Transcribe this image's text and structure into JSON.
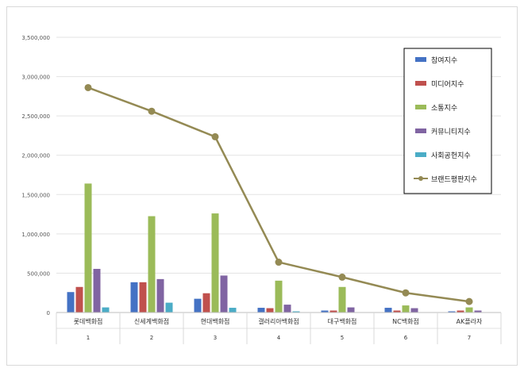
{
  "chart_data": {
    "type": "bar",
    "title": "",
    "xlabel": "",
    "ylabel": "",
    "ylim": [
      0,
      3500000
    ],
    "yticks": [
      "0",
      "500,000",
      "1,000,000",
      "1,500,000",
      "2,000,000",
      "2,500,000",
      "3,000,000",
      "3,500,000"
    ],
    "ytick_values": [
      0,
      500000,
      1000000,
      1500000,
      2000000,
      2500000,
      3000000,
      3500000
    ],
    "categories": [
      "롯데백화점",
      "신세계백화점",
      "현대백화점",
      "갤러리아백화점",
      "대구백화점",
      "NC백화점",
      "AK플라자"
    ],
    "category_ranks": [
      "1",
      "2",
      "3",
      "4",
      "5",
      "6",
      "7"
    ],
    "grid": true,
    "legend_position": "right",
    "series": [
      {
        "name": "참여지수",
        "type": "bar",
        "color": "#4472c4",
        "values": [
          260000,
          385000,
          175000,
          60000,
          25000,
          60000,
          15000
        ]
      },
      {
        "name": "미디어지수",
        "type": "bar",
        "color": "#c0504d",
        "values": [
          325000,
          385000,
          245000,
          55000,
          25000,
          25000,
          25000
        ]
      },
      {
        "name": "소통지수",
        "type": "bar",
        "color": "#9bbb59",
        "values": [
          1640000,
          1225000,
          1260000,
          405000,
          325000,
          90000,
          65000
        ]
      },
      {
        "name": "커뮤니티지수",
        "type": "bar",
        "color": "#8064a2",
        "values": [
          555000,
          425000,
          470000,
          100000,
          65000,
          55000,
          25000
        ]
      },
      {
        "name": "사회공헌지수",
        "type": "bar",
        "color": "#4bacc6",
        "values": [
          65000,
          125000,
          60000,
          15000,
          5000,
          5000,
          5000
        ]
      },
      {
        "name": "브랜드평판지수",
        "type": "line",
        "color": "#948a54",
        "values": [
          2860000,
          2560000,
          2235000,
          640000,
          450000,
          250000,
          140000
        ]
      }
    ]
  }
}
